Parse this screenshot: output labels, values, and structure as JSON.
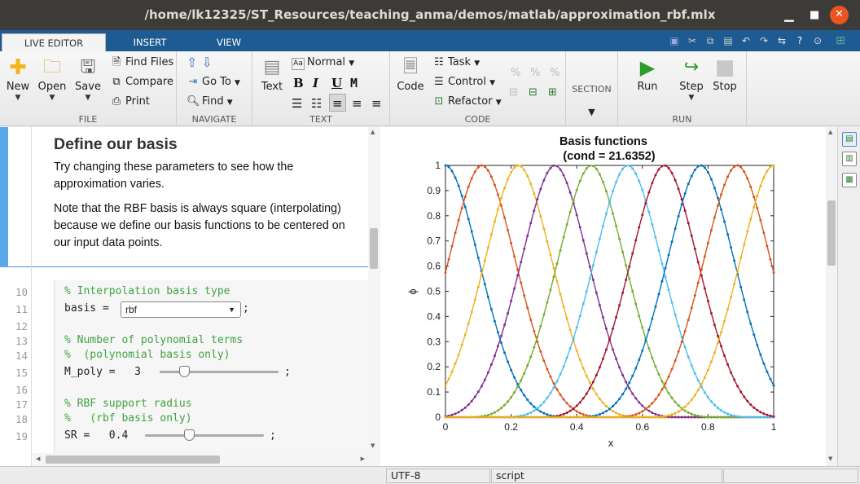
{
  "window": {
    "title": "/home/lk12325/ST_Resources/teaching_anma/demos/matlab/approximation_rbf.mlx"
  },
  "tabs": [
    "LIVE EDITOR",
    "INSERT",
    "VIEW"
  ],
  "ribbon": {
    "file": {
      "label": "FILE",
      "new": "New",
      "open": "Open",
      "save": "Save",
      "find_files": "Find Files",
      "compare": "Compare",
      "print": "Print"
    },
    "navigate": {
      "label": "NAVIGATE",
      "go_to": "Go To",
      "find": "Find"
    },
    "text": {
      "label": "TEXT",
      "text": "Text",
      "style": "Normal",
      "bold": "B",
      "italic": "I",
      "underline": "U",
      "mono": "M"
    },
    "code": {
      "label": "CODE",
      "code": "Code",
      "task": "Task",
      "control": "Control",
      "refactor": "Refactor"
    },
    "section": {
      "label": "SECTION"
    },
    "run": {
      "label": "RUN",
      "run": "Run",
      "step": "Step",
      "stop": "Stop"
    }
  },
  "editor": {
    "heading": "Define our basis",
    "para1": "Try changing these parameters to see how the approximation varies.",
    "para2": "Note that the RBF basis is always square (interpolating) because we define our basis functions to be centered on our input data points.",
    "lines": [
      {
        "num": "10",
        "code": "% Interpolation basis type",
        "comment": true
      },
      {
        "num": "11",
        "code": "basis = ",
        "comment": false
      },
      {
        "num": "12",
        "code": "",
        "comment": false
      },
      {
        "num": "13",
        "code": "% Number of polynomial terms",
        "comment": true
      },
      {
        "num": "14",
        "code": "%  (polynomial basis only)",
        "comment": true
      },
      {
        "num": "15",
        "code": "M_poly =   3",
        "comment": false
      },
      {
        "num": "16",
        "code": "",
        "comment": false
      },
      {
        "num": "17",
        "code": "% RBF support radius",
        "comment": true
      },
      {
        "num": "18",
        "code": "%   (rbf basis only)",
        "comment": true
      },
      {
        "num": "19",
        "code": "SR =   0.4",
        "comment": false
      }
    ],
    "basis_value": "rbf",
    "semicolon": ";",
    "m_poly_value": 3,
    "sr_value": 0.4
  },
  "chart_data": {
    "type": "line",
    "title": "Basis functions",
    "subtitle": "(cond = 21.6352)",
    "xlabel": "x",
    "ylabel": "ϕ",
    "xlim": [
      0,
      1
    ],
    "ylim": [
      0,
      1
    ],
    "xticks": [
      "0",
      "0.2",
      "0.4",
      "0.6",
      "0.8",
      "1"
    ],
    "yticks": [
      "0",
      "0.1",
      "0.2",
      "0.3",
      "0.4",
      "0.5",
      "0.6",
      "0.7",
      "0.8",
      "0.9",
      "1"
    ],
    "centers": [
      0,
      0.1111,
      0.2222,
      0.3333,
      0.4444,
      0.5556,
      0.6667,
      0.7778,
      0.8889,
      1
    ],
    "support_radius": 0.4,
    "colors": [
      "#0072bd",
      "#d95319",
      "#edb120",
      "#7e2f8e",
      "#77ac30",
      "#4dbeee",
      "#a2142f",
      "#0072bd",
      "#d95319",
      "#edb120"
    ],
    "grid": false
  },
  "status": {
    "encoding": "UTF-8",
    "type": "script"
  }
}
